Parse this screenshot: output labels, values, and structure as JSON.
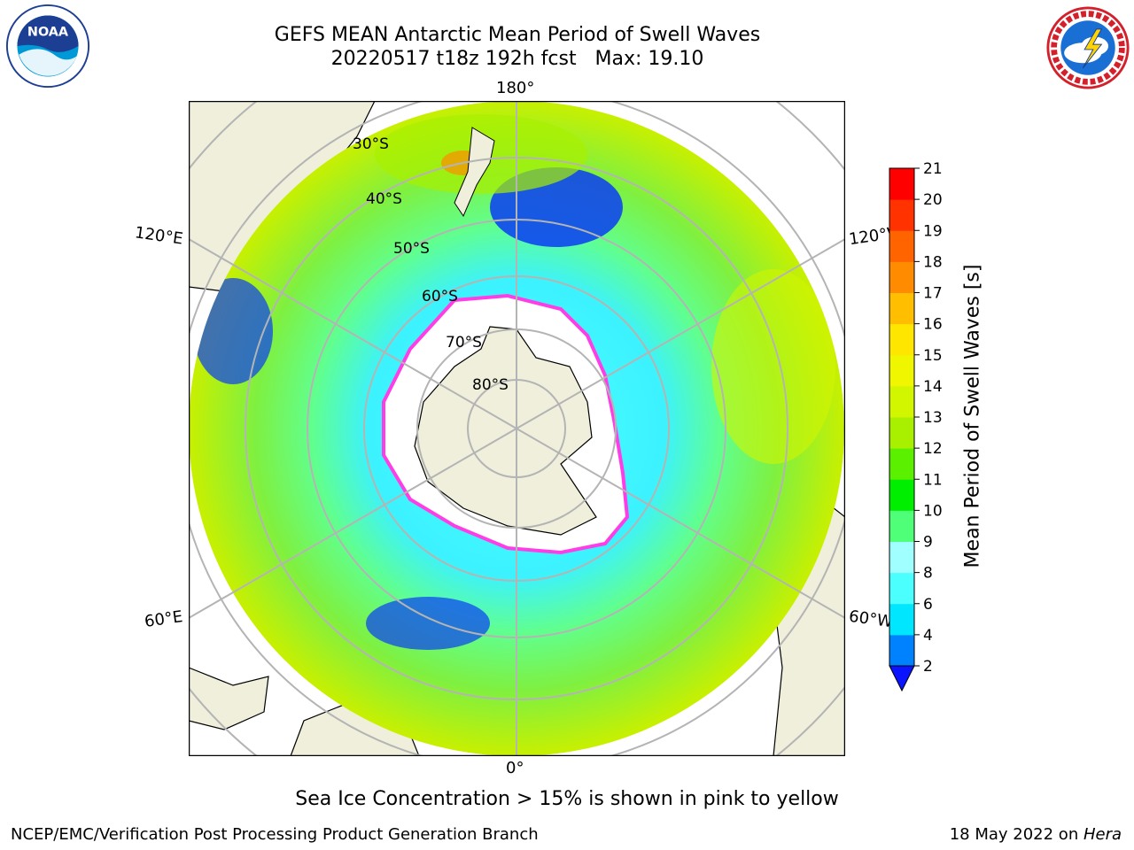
{
  "header": {
    "title_line1": "GEFS MEAN Antarctic Mean Period of Swell Waves",
    "title_line2": "20220517 t18z 192h fcst   Max: 19.10"
  },
  "logos": {
    "left": {
      "icon": "noaa-logo",
      "text": "NOAA"
    },
    "right": {
      "icon": "nws-logo"
    }
  },
  "map": {
    "projection": "south-polar-stereographic",
    "longitude_labels": {
      "top": "180°",
      "bottom": "0°",
      "upper_left": "120°E",
      "lower_left": "60°E",
      "upper_right": "120°W",
      "lower_right": "60°W"
    },
    "latitude_labels": [
      "30°S",
      "40°S",
      "50°S",
      "60°S",
      "70°S",
      "80°S"
    ],
    "colors": {
      "land": "#efefdc",
      "sea_ice": "#ffffff",
      "ice_edge": "#ff3de6",
      "graticule": "#b4b4b4"
    }
  },
  "colorbar": {
    "label": "Mean Period of Swell Waves [s]",
    "ticks": [
      "2",
      "4",
      "6",
      "8",
      "9",
      "10",
      "11",
      "12",
      "13",
      "14",
      "15",
      "16",
      "17",
      "18",
      "19",
      "20",
      "21"
    ],
    "colors": [
      "#0a3cf5",
      "#0082ff",
      "#00e6ff",
      "#4cffff",
      "#a0ffff",
      "#50ff78",
      "#00ee00",
      "#5af000",
      "#a8f000",
      "#d2f500",
      "#f0f500",
      "#ffe600",
      "#ffbe00",
      "#ff8c00",
      "#ff6400",
      "#ff3200",
      "#ff0000"
    ],
    "extend_color": "#0a14ff"
  },
  "note": "Sea Ice Concentration > 15% is shown in pink to yellow",
  "footer": {
    "left": "NCEP/EMC/Verification Post Processing Product Generation Branch",
    "right_prefix": "18 May 2022 on ",
    "right_machine": "Hera"
  }
}
